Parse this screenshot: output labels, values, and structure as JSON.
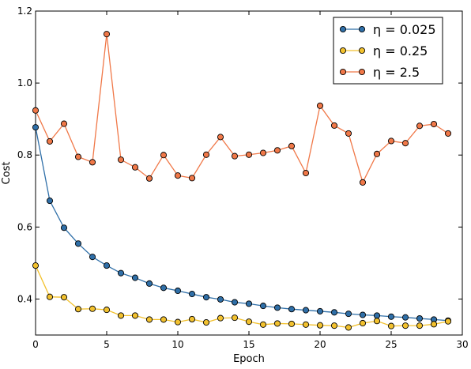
{
  "chart_data": {
    "type": "line",
    "title": "",
    "xlabel": "Epoch",
    "ylabel": "Cost",
    "xlim": [
      0,
      30
    ],
    "ylim": [
      0.3,
      1.2
    ],
    "xticks": [
      0,
      5,
      10,
      15,
      20,
      25,
      30
    ],
    "yticks": [
      0.4,
      0.6,
      0.8,
      1.0,
      1.2
    ],
    "ytick_labels": [
      "0.4",
      "0.6",
      "0.8",
      "1.0",
      "1.2"
    ],
    "grid": false,
    "legend_position": "top-right",
    "x": [
      0,
      1,
      2,
      3,
      4,
      5,
      6,
      7,
      8,
      9,
      10,
      11,
      12,
      13,
      14,
      15,
      16,
      17,
      18,
      19,
      20,
      21,
      22,
      23,
      24,
      25,
      26,
      27,
      28,
      29
    ],
    "series": [
      {
        "name": "η = 0.025",
        "color": "#2f6fa8",
        "values": [
          0.877,
          0.673,
          0.598,
          0.554,
          0.517,
          0.493,
          0.472,
          0.459,
          0.443,
          0.431,
          0.423,
          0.414,
          0.405,
          0.399,
          0.391,
          0.387,
          0.381,
          0.376,
          0.372,
          0.369,
          0.366,
          0.363,
          0.359,
          0.356,
          0.354,
          0.351,
          0.349,
          0.346,
          0.343,
          0.34
        ]
      },
      {
        "name": "η = 0.25",
        "color": "#f2c12e",
        "values": [
          0.493,
          0.406,
          0.405,
          0.372,
          0.373,
          0.37,
          0.354,
          0.354,
          0.343,
          0.343,
          0.336,
          0.344,
          0.335,
          0.347,
          0.348,
          0.337,
          0.329,
          0.332,
          0.331,
          0.329,
          0.327,
          0.326,
          0.321,
          0.333,
          0.339,
          0.325,
          0.326,
          0.326,
          0.33,
          0.338
        ]
      },
      {
        "name": "η = 2.5",
        "color": "#f07848",
        "values": [
          0.924,
          0.838,
          0.887,
          0.795,
          0.78,
          1.136,
          0.787,
          0.766,
          0.735,
          0.8,
          0.743,
          0.736,
          0.801,
          0.85,
          0.797,
          0.801,
          0.806,
          0.813,
          0.825,
          0.75,
          0.937,
          0.882,
          0.86,
          0.724,
          0.803,
          0.839,
          0.833,
          0.881,
          0.886,
          0.86
        ]
      }
    ]
  }
}
